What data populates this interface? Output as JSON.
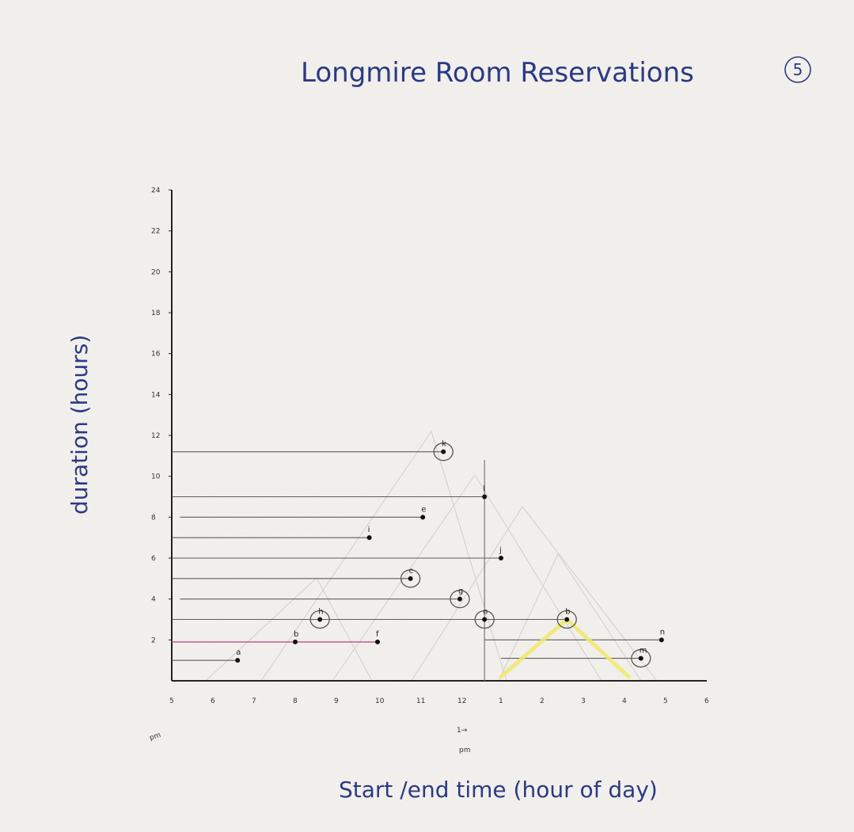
{
  "page_number": "5",
  "chart_data": {
    "type": "scatter",
    "title": "Longmire Room Reservations",
    "xlabel": "Start /end time (hour of day)",
    "ylabel": "duration (hours)",
    "x_tick_labels": [
      "5",
      "6",
      "7",
      "8",
      "9",
      "10",
      "11",
      "12",
      "1",
      "2",
      "3",
      "4",
      "5",
      "6"
    ],
    "y_tick_labels": [
      "2",
      "4",
      "6",
      "8",
      "10",
      "12",
      "14",
      "16",
      "18",
      "20",
      "22",
      "24"
    ],
    "x_annotations": [
      "pm",
      "1→\npm"
    ],
    "xlim": [
      5,
      18
    ],
    "ylim": [
      0,
      24
    ],
    "grid": false,
    "points": [
      {
        "label": "a",
        "x": 6.6,
        "y": 1.0,
        "circled": false
      },
      {
        "label": "b",
        "x": 8.0,
        "y": 1.9,
        "circled": false
      },
      {
        "label": "h",
        "x": 8.6,
        "y": 3.0,
        "circled": true
      },
      {
        "label": "f",
        "x": 10.0,
        "y": 1.9,
        "circled": false
      },
      {
        "label": "i",
        "x": 9.8,
        "y": 7.0,
        "circled": false
      },
      {
        "label": "c",
        "x": 10.8,
        "y": 5.0,
        "circled": true
      },
      {
        "label": "e",
        "x": 11.1,
        "y": 8.0,
        "circled": false
      },
      {
        "label": "k",
        "x": 11.6,
        "y": 11.2,
        "circled": true
      },
      {
        "label": "g",
        "x": 12.0,
        "y": 4.0,
        "circled": true
      },
      {
        "label": "l",
        "x": 12.6,
        "y": 9.0,
        "circled": false
      },
      {
        "label": "o",
        "x": 12.6,
        "y": 3.0,
        "circled": true
      },
      {
        "label": "j",
        "x": 13.0,
        "y": 6.0,
        "circled": false
      },
      {
        "label": "b",
        "x": 14.6,
        "y": 3.0,
        "circled": true
      },
      {
        "label": "m",
        "x": 16.4,
        "y": 1.1,
        "circled": true
      },
      {
        "label": "n",
        "x": 16.9,
        "y": 2.0,
        "circled": false
      }
    ],
    "guide_lines": [
      {
        "y": 1.0,
        "from_x": 5.0,
        "to_x": 6.6
      },
      {
        "y": 1.9,
        "from_x": 5.0,
        "to_x": 10.0
      },
      {
        "y": 3.0,
        "from_x": 5.0,
        "to_x": 14.6
      },
      {
        "y": 4.0,
        "from_x": 5.2,
        "to_x": 12.0
      },
      {
        "y": 5.0,
        "from_x": 5.0,
        "to_x": 10.8
      },
      {
        "y": 6.0,
        "from_x": 5.0,
        "to_x": 13.0
      },
      {
        "y": 7.0,
        "from_x": 5.0,
        "to_x": 9.8
      },
      {
        "y": 8.0,
        "from_x": 5.2,
        "to_x": 11.1
      },
      {
        "y": 9.0,
        "from_x": 5.0,
        "to_x": 12.6
      },
      {
        "y": 11.2,
        "from_x": 5.0,
        "to_x": 11.6
      },
      {
        "y": 2.0,
        "from_x": 12.6,
        "to_x": 16.9
      },
      {
        "y": 1.1,
        "from_x": 13.0,
        "to_x": 16.4
      }
    ],
    "vertical_marker": {
      "x": 12.6,
      "y_top": 10.8
    },
    "yellow_polyline": [
      [
        13.0,
        0.2
      ],
      [
        14.6,
        3.0
      ],
      [
        16.1,
        0.2
      ]
    ],
    "colors": {
      "ink": "#2c3a84",
      "highlighter": "#f2e86a",
      "pencil": "#444444",
      "pink": "#c2508a"
    }
  }
}
